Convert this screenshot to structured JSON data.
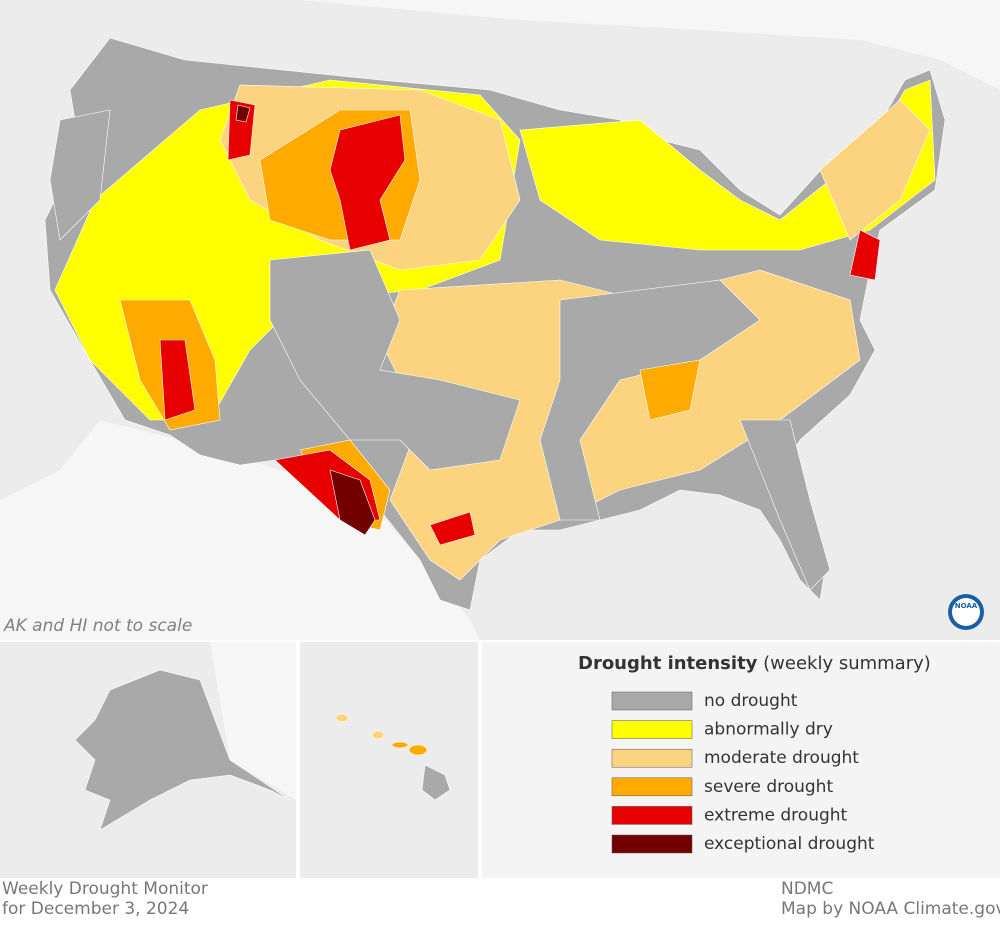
{
  "map": {
    "note": "AK and HI not to scale",
    "logo": "NOAA"
  },
  "legend": {
    "title": "Drought intensity",
    "subtitle": "(weekly summary)",
    "items": [
      {
        "label": "no drought",
        "color": "#a9a9a9"
      },
      {
        "label": "abnormally dry",
        "color": "#ffff00"
      },
      {
        "label": "moderate drought",
        "color": "#fcd37f"
      },
      {
        "label": "severe drought",
        "color": "#ffaa00"
      },
      {
        "label": "extreme drought",
        "color": "#e60000"
      },
      {
        "label": "exceptional drought",
        "color": "#730000"
      }
    ]
  },
  "footer": {
    "left": [
      "Weekly Drought Monitor",
      "for December 3, 2024"
    ],
    "right": [
      "NDMC",
      "Map by NOAA Climate.gov"
    ]
  }
}
